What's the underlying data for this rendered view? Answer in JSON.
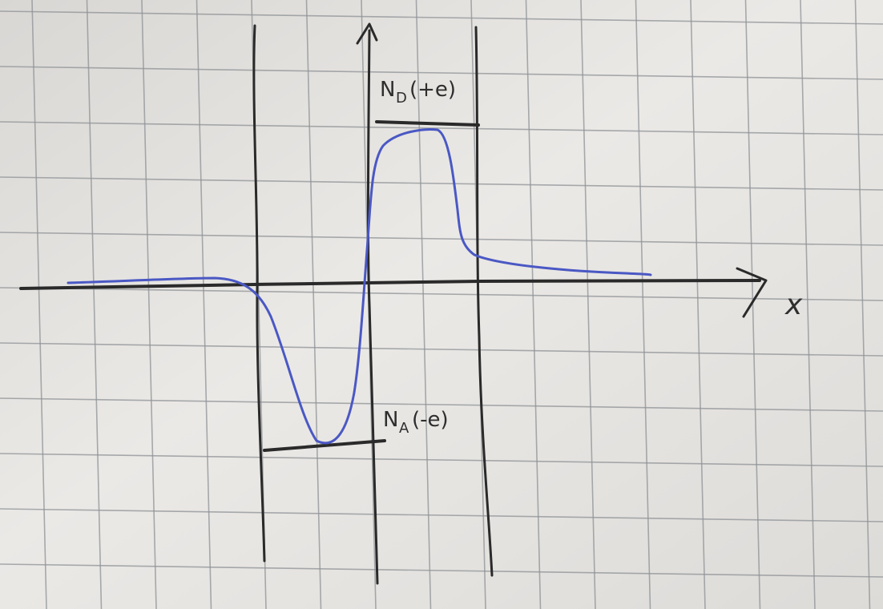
{
  "diagram": {
    "donor_label": "N",
    "donor_subscript": "D",
    "donor_charge": "(+e)",
    "acceptor_label": "N",
    "acceptor_subscript": "A",
    "acceptor_charge": "(-e)",
    "x_axis_label": "x"
  },
  "colors": {
    "paper": "#e6e4e1",
    "grid": "#8e9296",
    "pencil": "#2a2a2a",
    "curve": "#4a58c4"
  }
}
